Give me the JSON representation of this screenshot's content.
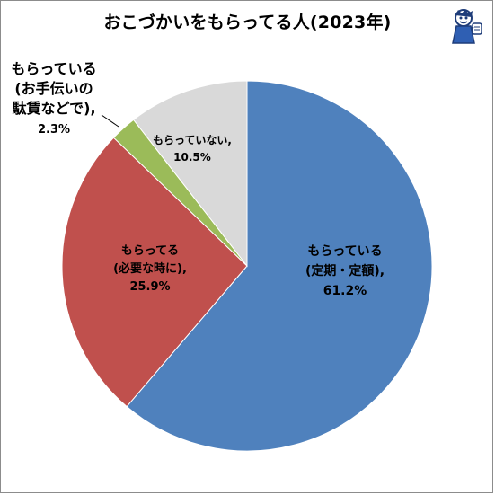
{
  "title": "おこづかいをもらってる人(2023年)",
  "chart_data": {
    "type": "pie",
    "title": "おこづかいをもらってる人(2023年)",
    "start_angle_deg": 0,
    "direction": "clockwise",
    "slices": [
      {
        "label_lines": [
          "もらっている",
          "(定期・定額),",
          "61.2%"
        ],
        "value": 61.2,
        "color": "#4f81bd"
      },
      {
        "label_lines": [
          "もらってる",
          "(必要な時に),",
          "25.9%"
        ],
        "value": 25.9,
        "color": "#c0504d"
      },
      {
        "label_lines": [
          "もらっている",
          "(お手伝いの",
          "駄賃などで),",
          "2.3%"
        ],
        "value": 2.3,
        "color": "#9bbb59"
      },
      {
        "label_lines": [
          "もらっていない,",
          "10.5%"
        ],
        "value": 10.5,
        "color": "#d9d9d9"
      }
    ]
  },
  "icons": {
    "mascot": "mascot-character-icon"
  }
}
